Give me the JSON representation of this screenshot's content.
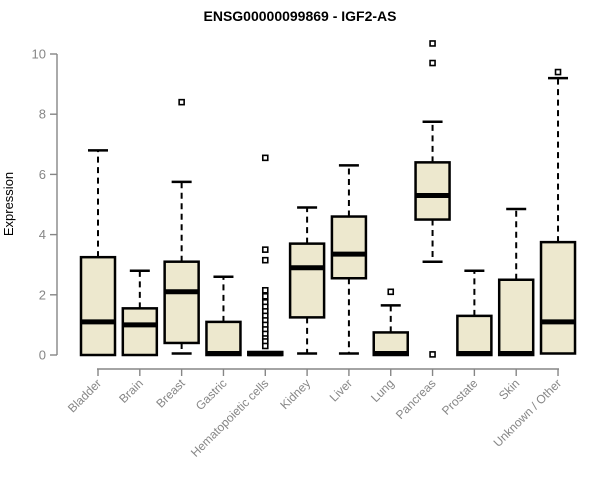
{
  "chart_data": {
    "type": "boxplot",
    "title": "ENSG00000099869 - IGF2-AS",
    "xlabel": "",
    "ylabel": "Expression",
    "ylim": [
      0,
      10
    ],
    "yticks": [
      0,
      2,
      4,
      6,
      8,
      10
    ],
    "grid": false,
    "legend": false,
    "box_fill_color": "#EDE8CE",
    "box_stroke_color": "#000000",
    "axis_color": "#868686",
    "categories": [
      "Bladder",
      "Brain",
      "Breast",
      "Gastric",
      "Hematopoietic cells",
      "Kidney",
      "Liver",
      "Lung",
      "Pancreas",
      "Prostate",
      "Skin",
      "Unknown / Other"
    ],
    "series": [
      {
        "category": "Bladder",
        "whisker_low": null,
        "q1": 0,
        "median": 1.1,
        "q3": 3.25,
        "whisker_high": 6.8,
        "outliers": []
      },
      {
        "category": "Brain",
        "whisker_low": null,
        "q1": 0,
        "median": 1.0,
        "q3": 1.55,
        "whisker_high": 2.8,
        "outliers": []
      },
      {
        "category": "Breast",
        "whisker_low": 0.05,
        "q1": 0.4,
        "median": 2.1,
        "q3": 3.1,
        "whisker_high": 5.75,
        "outliers": [
          8.4
        ]
      },
      {
        "category": "Gastric",
        "whisker_low": null,
        "q1": 0,
        "median": 0.05,
        "q3": 1.1,
        "whisker_high": 2.6,
        "outliers": []
      },
      {
        "category": "Hematopoietic cells",
        "whisker_low": null,
        "q1": 0,
        "median": 0.04,
        "q3": 0.1,
        "whisker_high": null,
        "outliers": [
          6.55,
          3.5,
          3.15,
          2.15,
          1.95,
          1.75,
          1.6,
          1.45,
          1.3,
          1.15,
          1.0,
          0.85,
          0.7,
          0.55,
          0.45,
          0.3
        ]
      },
      {
        "category": "Kidney",
        "whisker_low": 0.05,
        "q1": 1.25,
        "median": 2.9,
        "q3": 3.7,
        "whisker_high": 4.9,
        "outliers": []
      },
      {
        "category": "Liver",
        "whisker_low": 0.05,
        "q1": 2.55,
        "median": 3.35,
        "q3": 4.6,
        "whisker_high": 6.3,
        "outliers": []
      },
      {
        "category": "Lung",
        "whisker_low": null,
        "q1": 0,
        "median": 0.05,
        "q3": 0.75,
        "whisker_high": 1.65,
        "outliers": [
          2.1
        ]
      },
      {
        "category": "Pancreas",
        "whisker_low": 3.1,
        "q1": 4.5,
        "median": 5.3,
        "q3": 6.4,
        "whisker_high": 7.75,
        "outliers": [
          10.35,
          9.7,
          0.02
        ]
      },
      {
        "category": "Prostate",
        "whisker_low": null,
        "q1": 0,
        "median": 0.05,
        "q3": 1.3,
        "whisker_high": 2.8,
        "outliers": []
      },
      {
        "category": "Skin",
        "whisker_low": null,
        "q1": 0,
        "median": 0.05,
        "q3": 2.5,
        "whisker_high": 4.85,
        "outliers": []
      },
      {
        "category": "Unknown / Other",
        "whisker_low": null,
        "q1": 0.05,
        "median": 1.1,
        "q3": 3.75,
        "whisker_high": 9.2,
        "outliers": [
          9.4
        ]
      }
    ]
  }
}
